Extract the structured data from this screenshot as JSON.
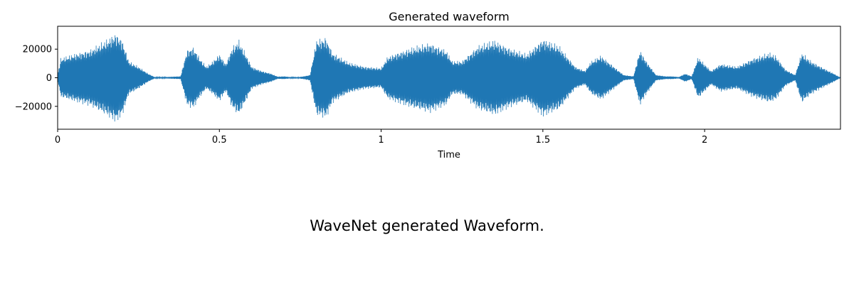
{
  "chart_data": {
    "type": "line",
    "title": "Generated waveform",
    "xlabel": "Time",
    "ylabel": "",
    "xlim": [
      0,
      2.42
    ],
    "ylim": [
      -36000,
      36000
    ],
    "xticks": [
      0,
      0.5,
      1,
      1.5,
      2
    ],
    "xtick_labels": [
      "0",
      "0.5",
      "1",
      "1.5",
      "2"
    ],
    "yticks": [
      20000,
      0,
      -20000
    ],
    "ytick_labels": [
      "20000",
      "0",
      "−20000"
    ],
    "grid": false,
    "legend": "none",
    "series_color": "#1f77b4",
    "series": [
      {
        "envelope_time": [
          0,
          0.01,
          0.05,
          0.1,
          0.15,
          0.18,
          0.2,
          0.22,
          0.25,
          0.28,
          0.3,
          0.33,
          0.36,
          0.38,
          0.4,
          0.42,
          0.44,
          0.46,
          0.48,
          0.5,
          0.52,
          0.54,
          0.56,
          0.58,
          0.6,
          0.63,
          0.66,
          0.68,
          0.7,
          0.72,
          0.74,
          0.76,
          0.78,
          0.8,
          0.83,
          0.85,
          0.9,
          0.95,
          1.0,
          1.02,
          1.05,
          1.1,
          1.15,
          1.2,
          1.22,
          1.25,
          1.3,
          1.35,
          1.4,
          1.45,
          1.5,
          1.55,
          1.6,
          1.63,
          1.65,
          1.68,
          1.7,
          1.75,
          1.78,
          1.8,
          1.82,
          1.85,
          1.88,
          1.9,
          1.92,
          1.94,
          1.96,
          1.98,
          2.0,
          2.02,
          2.05,
          2.1,
          2.15,
          2.2,
          2.22,
          2.25,
          2.28,
          2.3,
          2.33,
          2.36,
          2.4,
          2.42
        ],
        "envelope_amplitude": [
          2000,
          14000,
          17000,
          20000,
          27000,
          32000,
          27000,
          12000,
          8000,
          3000,
          500,
          500,
          800,
          1000,
          20000,
          22000,
          14000,
          8000,
          12000,
          17000,
          10000,
          22000,
          27000,
          18000,
          8000,
          5000,
          3000,
          800,
          1000,
          500,
          300,
          1000,
          2000,
          27000,
          29000,
          18000,
          11000,
          8000,
          7000,
          15000,
          18000,
          22000,
          25000,
          20000,
          12000,
          12000,
          23000,
          27000,
          21000,
          17000,
          28000,
          23000,
          8000,
          5000,
          12000,
          16000,
          12000,
          2000,
          1000,
          20000,
          12000,
          2000,
          1000,
          1000,
          500,
          3000,
          1000,
          15000,
          10000,
          5000,
          10000,
          8000,
          14000,
          18000,
          16000,
          6000,
          2000,
          18000,
          12000,
          8000,
          3000,
          0
        ]
      }
    ]
  },
  "caption": "WaveNet generated Waveform."
}
